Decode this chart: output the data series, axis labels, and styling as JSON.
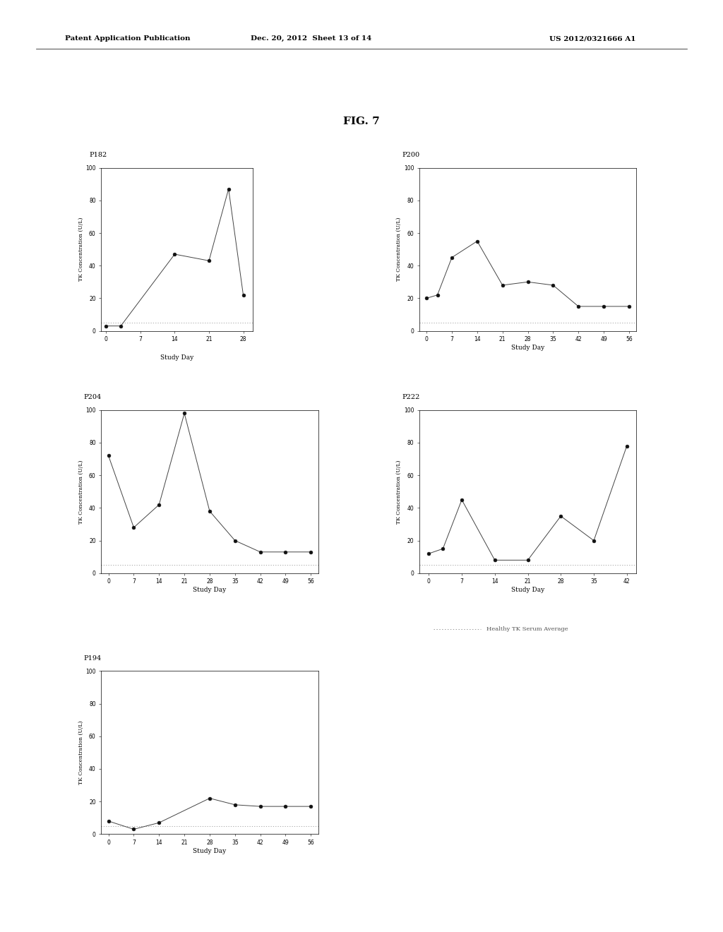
{
  "title": "FIG. 7",
  "patent_header_left": "Patent Application Publication",
  "patent_header_mid": "Dec. 20, 2012  Sheet 13 of 14",
  "patent_header_right": "US 2012/0321666 A1",
  "p182": {
    "label": "P182",
    "x": [
      0,
      3,
      14,
      21,
      25,
      28
    ],
    "y": [
      3,
      3,
      47,
      43,
      87,
      22
    ],
    "xlim": [
      -1,
      30
    ],
    "xticks": [
      0,
      7,
      14,
      21,
      28
    ],
    "ylim": [
      0,
      100
    ],
    "yticks": [
      0,
      20,
      40,
      60,
      80,
      100
    ],
    "healthy_line": 5
  },
  "p200": {
    "label": "P200",
    "x": [
      0,
      3,
      7,
      14,
      21,
      28,
      35,
      42,
      49,
      56
    ],
    "y": [
      20,
      22,
      45,
      55,
      28,
      30,
      28,
      15,
      15,
      15
    ],
    "xlim": [
      -2,
      58
    ],
    "xticks": [
      0,
      7,
      14,
      21,
      28,
      35,
      42,
      49,
      56
    ],
    "ylim": [
      0,
      100
    ],
    "yticks": [
      0,
      20,
      40,
      60,
      80,
      100
    ],
    "healthy_line": 5
  },
  "p204": {
    "label": "P204",
    "x": [
      0,
      7,
      14,
      21,
      28,
      35,
      42,
      49,
      56
    ],
    "y": [
      72,
      28,
      42,
      98,
      38,
      20,
      13,
      13,
      13
    ],
    "xlim": [
      -2,
      58
    ],
    "xticks": [
      0,
      7,
      14,
      21,
      28,
      35,
      42,
      49,
      56
    ],
    "ylim": [
      0,
      100
    ],
    "yticks": [
      0,
      20,
      40,
      60,
      80,
      100
    ],
    "healthy_line": 5
  },
  "p222": {
    "label": "P222",
    "x": [
      0,
      3,
      7,
      14,
      21,
      28,
      35,
      42
    ],
    "y": [
      12,
      15,
      45,
      8,
      8,
      35,
      20,
      78
    ],
    "xlim": [
      -2,
      44
    ],
    "xticks": [
      0,
      7,
      14,
      21,
      28,
      35,
      42
    ],
    "ylim": [
      0,
      100
    ],
    "yticks": [
      0,
      20,
      40,
      60,
      80,
      100
    ],
    "healthy_line": 5
  },
  "p194": {
    "label": "P194",
    "x": [
      0,
      7,
      14,
      28,
      35,
      42,
      49,
      56
    ],
    "y": [
      8,
      3,
      7,
      22,
      18,
      17,
      17,
      17
    ],
    "xlim": [
      -2,
      58
    ],
    "xticks": [
      0,
      7,
      14,
      21,
      28,
      35,
      42,
      49,
      56
    ],
    "ylim": [
      0,
      100
    ],
    "yticks": [
      0,
      20,
      40,
      60,
      80,
      100
    ],
    "healthy_line": 5
  },
  "xlabel": "Study Day",
  "ylabel": "TK Concentration (U/L)",
  "line_color": "#444444",
  "marker_color": "#111111",
  "marker_size": 3.5,
  "healthy_color": "#999999",
  "bg_color": "#ffffff"
}
